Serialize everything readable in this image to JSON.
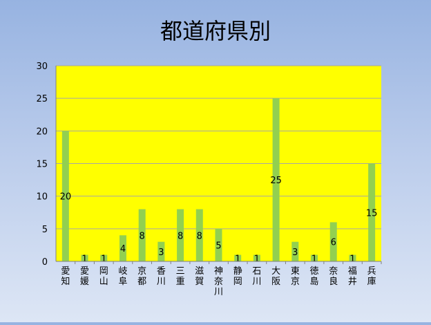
{
  "chart_data": {
    "type": "bar",
    "title": "都道府県別",
    "categories": [
      "愛知",
      "愛媛",
      "岡山",
      "岐阜",
      "京都",
      "香川",
      "三重",
      "滋賀",
      "神奈川",
      "静岡",
      "石川",
      "大阪",
      "東京",
      "徳島",
      "奈良",
      "福井",
      "兵庫"
    ],
    "values": [
      20,
      1,
      1,
      4,
      8,
      3,
      8,
      8,
      5,
      1,
      1,
      25,
      3,
      1,
      6,
      1,
      15
    ],
    "xlabel": "",
    "ylabel": "",
    "ylim": [
      0,
      30
    ],
    "yticks": [
      0,
      5,
      10,
      15,
      20,
      25,
      30
    ],
    "grid": true,
    "legend": "none",
    "colors": {
      "plot_background": "#ffff00",
      "bar": "#92d050",
      "gridline": "#a6a6a6",
      "text": "#000000"
    }
  }
}
